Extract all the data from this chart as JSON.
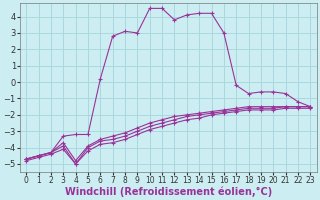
{
  "background_color": "#cceef2",
  "grid_color": "#aad8de",
  "line_color": "#993399",
  "xlabel": "Windchill (Refroidissement éolien,°C)",
  "xlabel_fontsize": 7.0,
  "xtick_fontsize": 5.5,
  "ytick_fontsize": 6.0,
  "xlim": [
    -0.5,
    23.5
  ],
  "ylim": [
    -5.5,
    4.8
  ],
  "yticks": [
    -5,
    -4,
    -3,
    -2,
    -1,
    0,
    1,
    2,
    3,
    4
  ],
  "xticks": [
    0,
    1,
    2,
    3,
    4,
    5,
    6,
    7,
    8,
    9,
    10,
    11,
    12,
    13,
    14,
    15,
    16,
    17,
    18,
    19,
    20,
    21,
    22,
    23
  ],
  "curve_main_x": [
    0,
    1,
    2,
    3,
    4,
    5,
    6,
    7,
    8,
    9,
    10,
    11,
    12,
    13,
    14,
    15,
    16,
    17,
    18,
    19,
    20,
    21,
    22,
    23
  ],
  "curve_main_y": [
    -4.7,
    -4.5,
    -4.3,
    -3.3,
    -3.2,
    -3.2,
    0.2,
    2.8,
    3.1,
    3.0,
    4.5,
    4.5,
    3.8,
    4.1,
    4.2,
    4.2,
    3.0,
    -0.2,
    -0.7,
    -0.6,
    -0.6,
    -0.7,
    -1.2,
    -1.5
  ],
  "curve1_x": [
    0,
    1,
    2,
    3,
    4,
    5,
    6,
    7,
    8,
    9,
    10,
    11,
    12,
    13,
    14,
    15,
    16,
    17,
    18,
    19,
    20,
    21,
    22,
    23
  ],
  "curve1_y": [
    -4.7,
    -4.5,
    -4.3,
    -3.9,
    -5.0,
    -4.0,
    -3.6,
    -3.5,
    -3.3,
    -3.0,
    -2.7,
    -2.5,
    -2.3,
    -2.1,
    -2.0,
    -1.9,
    -1.8,
    -1.7,
    -1.6,
    -1.6,
    -1.6,
    -1.5,
    -1.5,
    -1.5
  ],
  "curve2_x": [
    0,
    1,
    2,
    3,
    4,
    5,
    6,
    7,
    8,
    9,
    10,
    11,
    12,
    13,
    14,
    15,
    16,
    17,
    18,
    19,
    20,
    21,
    22,
    23
  ],
  "curve2_y": [
    -4.7,
    -4.5,
    -4.3,
    -3.7,
    -4.8,
    -3.9,
    -3.5,
    -3.3,
    -3.1,
    -2.8,
    -2.5,
    -2.3,
    -2.1,
    -2.0,
    -1.9,
    -1.8,
    -1.7,
    -1.6,
    -1.5,
    -1.5,
    -1.5,
    -1.5,
    -1.5,
    -1.5
  ],
  "curve3_x": [
    0,
    1,
    2,
    3,
    4,
    5,
    6,
    7,
    8,
    9,
    10,
    11,
    12,
    13,
    14,
    15,
    16,
    17,
    18,
    19,
    20,
    21,
    22,
    23
  ],
  "curve3_y": [
    -4.8,
    -4.6,
    -4.4,
    -4.1,
    -5.0,
    -4.2,
    -3.8,
    -3.7,
    -3.5,
    -3.2,
    -2.9,
    -2.7,
    -2.5,
    -2.3,
    -2.2,
    -2.0,
    -1.9,
    -1.8,
    -1.7,
    -1.7,
    -1.7,
    -1.6,
    -1.6,
    -1.6
  ]
}
